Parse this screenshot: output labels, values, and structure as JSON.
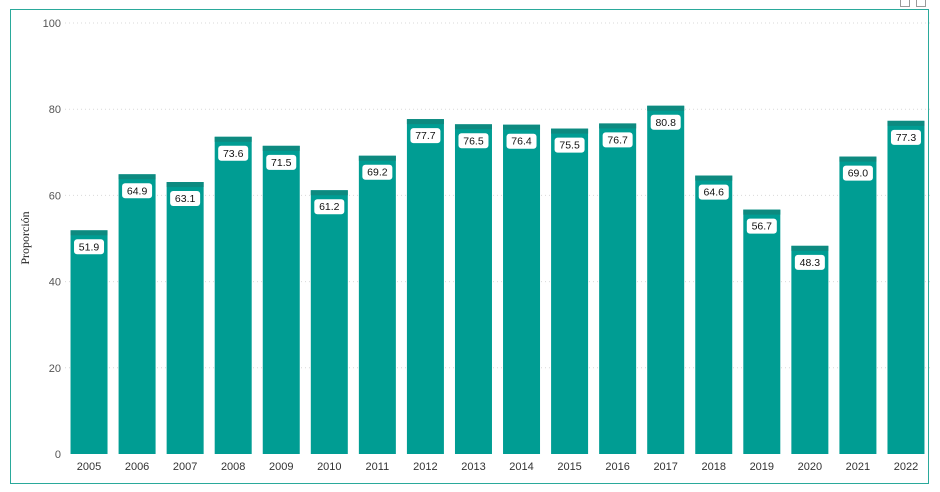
{
  "colors": {
    "bar": "#009d93",
    "bar_cap": "#0d8a80",
    "frame": "#2aa99b",
    "gridline": "#d9d9d9",
    "label_bg": "#ffffff"
  },
  "header": {
    "icons": [
      "filter-icon",
      "focus-mode-icon"
    ]
  },
  "chart_data": {
    "type": "bar",
    "title": "",
    "xlabel": "",
    "ylabel": "Proporción",
    "ylim": [
      0,
      100
    ],
    "yticks": [
      0,
      20,
      40,
      60,
      80,
      100
    ],
    "grid": true,
    "categories": [
      "2005",
      "2006",
      "2007",
      "2008",
      "2009",
      "2010",
      "2011",
      "2012",
      "2013",
      "2014",
      "2015",
      "2016",
      "2017",
      "2018",
      "2019",
      "2020",
      "2021",
      "2022"
    ],
    "values": [
      51.9,
      64.9,
      63.1,
      73.6,
      71.5,
      61.2,
      69.2,
      77.7,
      76.5,
      76.4,
      75.5,
      76.7,
      80.8,
      64.6,
      56.7,
      48.3,
      69.0,
      77.3
    ],
    "data_labels": [
      "51.9",
      "64.9",
      "63.1",
      "73.6",
      "71.5",
      "61.2",
      "69.2",
      "77.7",
      "76.5",
      "76.4",
      "75.5",
      "76.7",
      "80.8",
      "64.6",
      "56.7",
      "48.3",
      "69.0",
      "77.3"
    ]
  }
}
